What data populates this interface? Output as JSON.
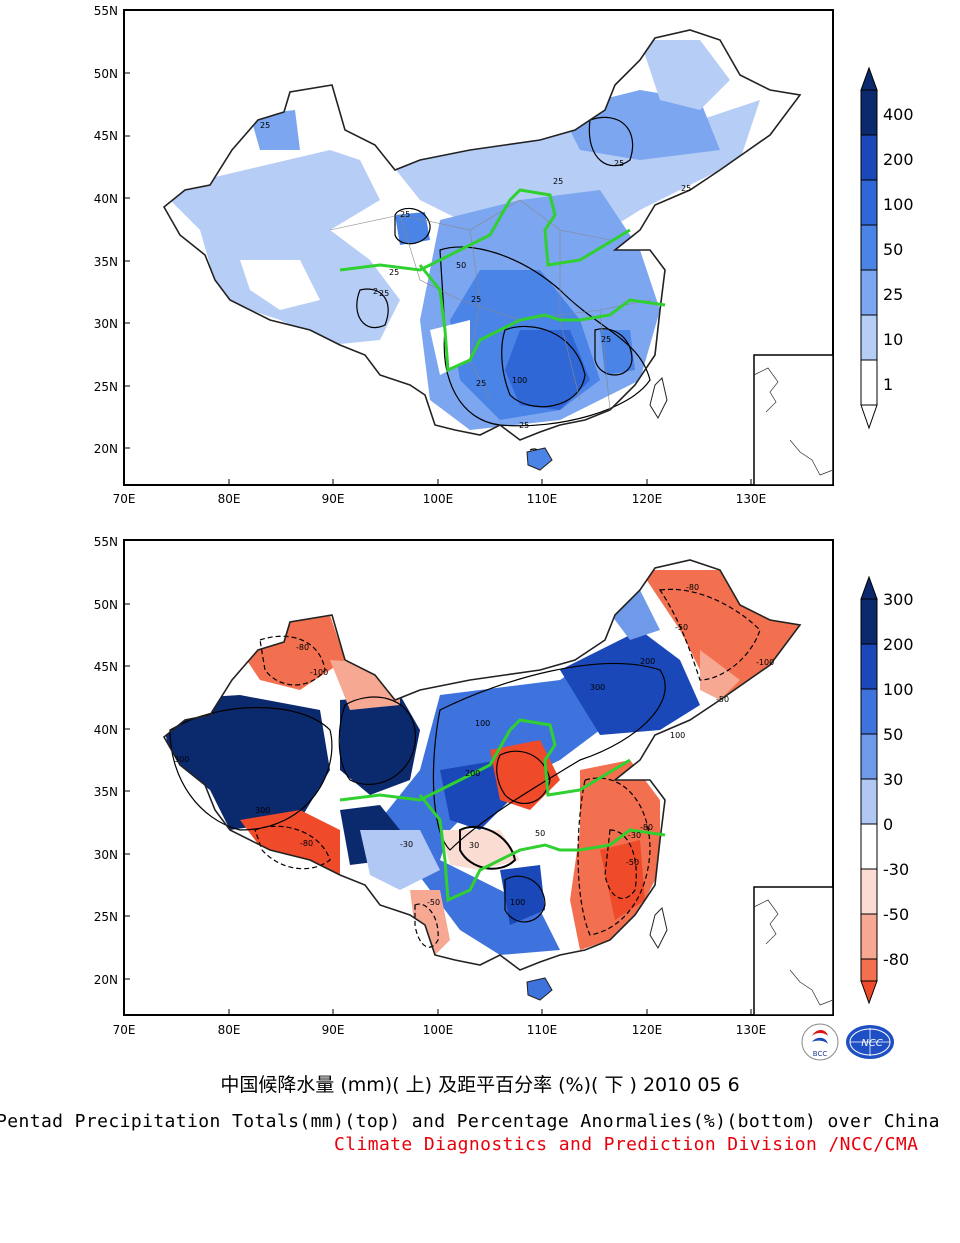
{
  "axes": {
    "lat_labels": [
      "55N",
      "50N",
      "45N",
      "40N",
      "35N",
      "30N",
      "25N",
      "20N"
    ],
    "lon_labels": [
      "70E",
      "80E",
      "90E",
      "100E",
      "110E",
      "120E",
      "130E"
    ]
  },
  "top_map": {
    "legend_values": [
      "400",
      "200",
      "100",
      "50",
      "25",
      "10",
      "1"
    ],
    "legend_colors": [
      "#0b2a6e",
      "#1a48b8",
      "#2f67d7",
      "#4a84e6",
      "#7ca6ef",
      "#b6cdf6",
      "#ffffff"
    ],
    "contour_labels": [
      "25",
      "25",
      "25",
      "25",
      "25",
      "25",
      "2",
      "25",
      "50",
      "25",
      "100",
      "25",
      "25",
      "25"
    ]
  },
  "bottom_map": {
    "legend_values": [
      "300",
      "200",
      "100",
      "50",
      "30",
      "0",
      "-30",
      "-50",
      "-80"
    ],
    "legend_colors": [
      "#0b2a6e",
      "#1a48b8",
      "#3e73dd",
      "#6f99e9",
      "#b2c8f4",
      "#ffffff",
      "#fbdcd3",
      "#f6a892",
      "#f2704f",
      "#ef4a2a"
    ],
    "contour_labels": [
      "300",
      "300",
      "300",
      "200",
      "100",
      "-80",
      "-100",
      "-50",
      "-80",
      "-100",
      "-50",
      "200",
      "100",
      "50",
      "30",
      "-30",
      "-50",
      "-80",
      "100",
      "-30",
      "-50",
      "-80"
    ]
  },
  "logos": {
    "bcc": "BCC",
    "ncc": "NCC"
  },
  "title_cn": "中国候降水量 (mm)( 上) 及距平百分率 (%)( 下 ) 2010 05 6",
  "title_en": "Pentad Precipitation Totals(mm)(top) and Percentage Anormalies(%)(bottom) over China",
  "credit": "Climate Diagnostics and Prediction Division /NCC/CMA"
}
